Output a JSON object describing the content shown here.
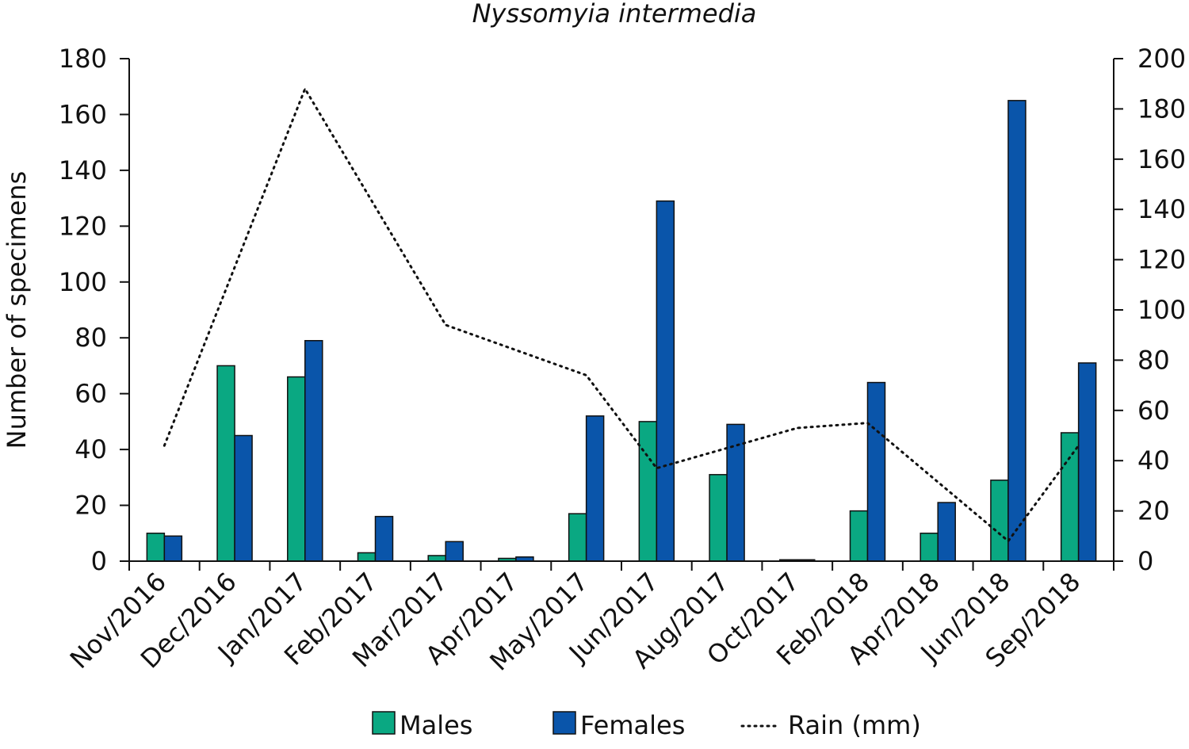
{
  "chart_data": {
    "type": "bar",
    "title": "Nyssomyia intermedia",
    "ylabel": "Number of specimens",
    "y2label": "",
    "ylim": [
      0,
      180
    ],
    "y2lim": [
      0,
      200
    ],
    "yticks": [
      "0",
      "20",
      "40",
      "60",
      "80",
      "100",
      "120",
      "140",
      "160",
      "180"
    ],
    "y2ticks": [
      "0",
      "20",
      "40",
      "60",
      "80",
      "100",
      "120",
      "140",
      "160",
      "180",
      "200"
    ],
    "categories": [
      "Nov/2016",
      "Dec/2016",
      "Jan/2017",
      "Feb/2017",
      "Mar/2017",
      "Apr/2017",
      "May/2017",
      "Jun/2017",
      "Aug/2017",
      "Oct/2017",
      "Feb/2018",
      "Apr/2018",
      "Jun/2018",
      "Sep/2018"
    ],
    "series": [
      {
        "name": "Males",
        "kind": "bar",
        "axis": "left",
        "color": "#0aa882",
        "values": [
          10,
          70,
          66,
          3,
          2,
          1,
          17,
          50,
          31,
          0.5,
          18,
          10,
          29,
          46
        ]
      },
      {
        "name": "Females",
        "kind": "bar",
        "axis": "left",
        "color": "#0a55aa",
        "values": [
          9,
          45,
          79,
          16,
          7,
          1.5,
          52,
          129,
          49,
          0.5,
          64,
          21,
          165,
          71
        ]
      },
      {
        "name": "Rain (mm)",
        "kind": "line",
        "style": "dotted",
        "axis": "right",
        "color": "#111111",
        "values": [
          46,
          null,
          188,
          null,
          94,
          null,
          74,
          37,
          null,
          53,
          55,
          null,
          8,
          46
        ]
      }
    ],
    "legend_position": "bottom",
    "grid": false
  }
}
